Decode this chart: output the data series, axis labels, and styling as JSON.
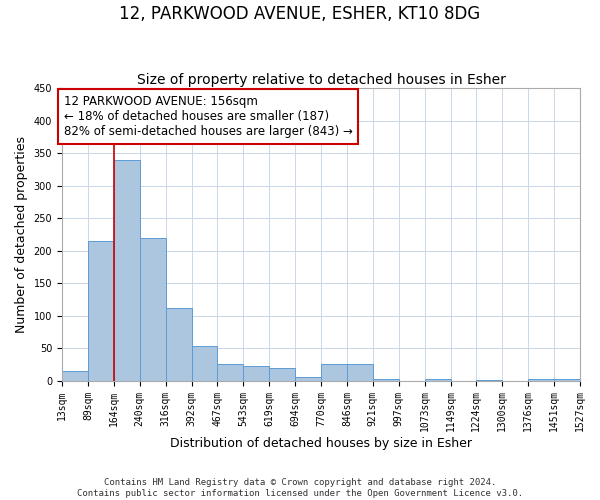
{
  "title": "12, PARKWOOD AVENUE, ESHER, KT10 8DG",
  "subtitle": "Size of property relative to detached houses in Esher",
  "xlabel": "Distribution of detached houses by size in Esher",
  "ylabel": "Number of detached properties",
  "bin_edges": [
    13,
    89,
    164,
    240,
    316,
    392,
    467,
    543,
    619,
    694,
    770,
    846,
    921,
    997,
    1073,
    1149,
    1224,
    1300,
    1376,
    1451,
    1527
  ],
  "bin_labels": [
    "13sqm",
    "89sqm",
    "164sqm",
    "240sqm",
    "316sqm",
    "392sqm",
    "467sqm",
    "543sqm",
    "619sqm",
    "694sqm",
    "770sqm",
    "846sqm",
    "921sqm",
    "997sqm",
    "1073sqm",
    "1149sqm",
    "1224sqm",
    "1300sqm",
    "1376sqm",
    "1451sqm",
    "1527sqm"
  ],
  "counts": [
    15,
    215,
    340,
    220,
    112,
    53,
    26,
    22,
    20,
    5,
    25,
    25,
    3,
    0,
    3,
    0,
    1,
    0,
    2,
    2
  ],
  "bar_color": "#adc6e0",
  "bar_edge_color": "#5b9bd5",
  "property_line_x": 164,
  "vline_color": "#cc0000",
  "annotation_text": "12 PARKWOOD AVENUE: 156sqm\n← 18% of detached houses are smaller (187)\n82% of semi-detached houses are larger (843) →",
  "annotation_box_color": "#ffffff",
  "annotation_box_edge_color": "#cc0000",
  "ylim": [
    0,
    450
  ],
  "yticks": [
    0,
    50,
    100,
    150,
    200,
    250,
    300,
    350,
    400,
    450
  ],
  "footer_line1": "Contains HM Land Registry data © Crown copyright and database right 2024.",
  "footer_line2": "Contains public sector information licensed under the Open Government Licence v3.0.",
  "bg_color": "#ffffff",
  "grid_color": "#c8d8e8",
  "title_fontsize": 12,
  "subtitle_fontsize": 10,
  "axis_label_fontsize": 9,
  "tick_fontsize": 7,
  "annotation_fontsize": 8.5,
  "footer_fontsize": 6.5
}
